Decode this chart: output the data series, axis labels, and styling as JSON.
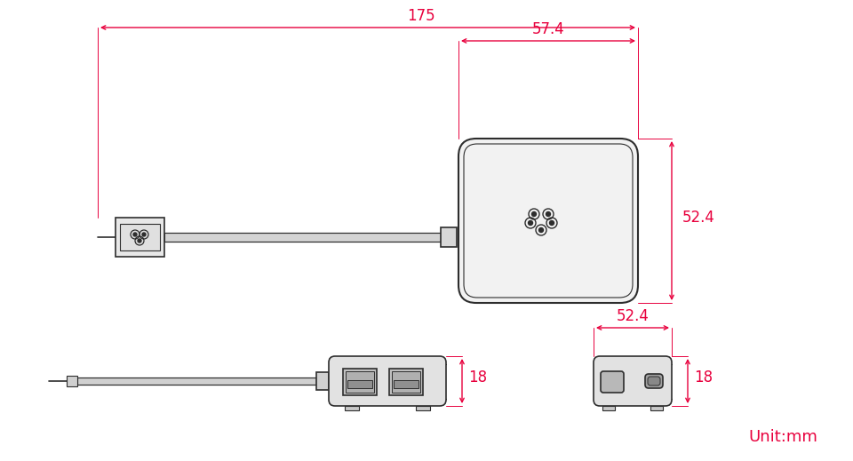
{
  "bg_color": "#ffffff",
  "line_color": "#2d2d2d",
  "dim_color": "#e8003d",
  "line_width": 1.2,
  "thin_lw": 0.8,
  "unit_label": "Unit:mm",
  "dim_175": "175",
  "dim_57_4": "57.4",
  "dim_52_4_top": "52.4",
  "dim_52_4_bot": "52.4",
  "dim_18_left": "18",
  "dim_18_right": "18"
}
